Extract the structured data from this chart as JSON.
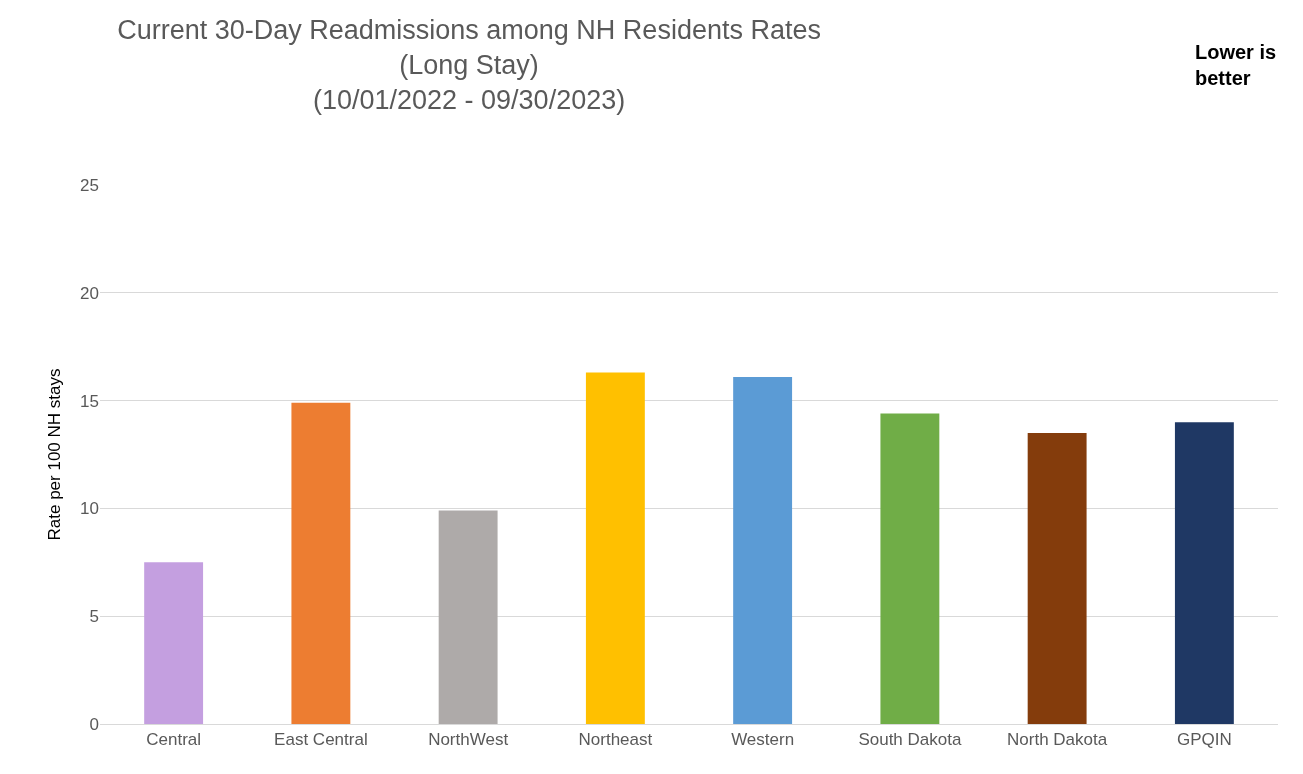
{
  "chart_data": {
    "type": "bar",
    "title": "Current 30-Day Readmissions among NH Residents Rates\n(Long Stay)\n(10/01/2022 - 09/30/2023)",
    "ylabel": "Rate per 100 NH stays",
    "annotations": [
      "**Lower is\nbetter**"
    ],
    "categories": [
      "Central",
      "East Central",
      "NorthWest",
      "Northeast",
      "Western",
      "South Dakota",
      "North Dakota",
      "GPQIN"
    ],
    "values": [
      7.5,
      14.9,
      9.9,
      16.3,
      16.1,
      14.4,
      13.5,
      14.0
    ],
    "colors": [
      "#c49fe0",
      "#ed7d31",
      "#aeaaa9",
      "#ffc000",
      "#5b9bd5",
      "#70ad47",
      "#843c0c",
      "#1f3864"
    ],
    "ylim": [
      0,
      25
    ],
    "yticks": [
      0,
      5,
      10,
      15,
      20,
      25
    ],
    "grid": "y"
  }
}
